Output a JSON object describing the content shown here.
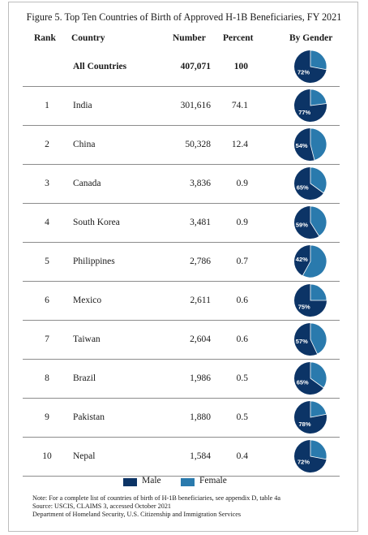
{
  "title": "Figure 5. Top Ten Countries of Birth of Approved H-1B Beneficiaries, FY 2021",
  "headers": {
    "rank": "Rank",
    "country": "Country",
    "number": "Number",
    "percent": "Percent",
    "gender": "By Gender"
  },
  "colors": {
    "male": "#0c3466",
    "female": "#2a7aad",
    "pie_label": "#ffffff"
  },
  "legend": {
    "male": "Male",
    "female": "Female"
  },
  "notes": [
    "Note: For a complete list of countries of birth of H-1B beneficiaries, see appendix D, table 4a",
    "Source: USCIS, CLAIMS 3, accessed October 2021",
    "Department of Homeland Security, U.S. Citizenship and Immigration Services"
  ],
  "chart_data": {
    "type": "table",
    "columns": [
      "Rank",
      "Country",
      "Number",
      "Percent",
      "By Gender"
    ],
    "rows": [
      {
        "rank": "",
        "country": "All Countries",
        "number": "407,071",
        "percent": "100",
        "male_pct": 72,
        "male_label": "72%"
      },
      {
        "rank": "1",
        "country": "India",
        "number": "301,616",
        "percent": "74.1",
        "male_pct": 77,
        "male_label": "77%"
      },
      {
        "rank": "2",
        "country": "China",
        "number": "50,328",
        "percent": "12.4",
        "male_pct": 54,
        "male_label": "54%"
      },
      {
        "rank": "3",
        "country": "Canada",
        "number": "3,836",
        "percent": "0.9",
        "male_pct": 65,
        "male_label": "65%"
      },
      {
        "rank": "4",
        "country": "South Korea",
        "number": "3,481",
        "percent": "0.9",
        "male_pct": 59,
        "male_label": "59%"
      },
      {
        "rank": "5",
        "country": "Philippines",
        "number": "2,786",
        "percent": "0.7",
        "male_pct": 42,
        "male_label": "42%"
      },
      {
        "rank": "6",
        "country": "Mexico",
        "number": "2,611",
        "percent": "0.6",
        "male_pct": 75,
        "male_label": "75%"
      },
      {
        "rank": "7",
        "country": "Taiwan",
        "number": "2,604",
        "percent": "0.6",
        "male_pct": 57,
        "male_label": "57%"
      },
      {
        "rank": "8",
        "country": "Brazil",
        "number": "1,986",
        "percent": "0.5",
        "male_pct": 65,
        "male_label": "65%"
      },
      {
        "rank": "9",
        "country": "Pakistan",
        "number": "1,880",
        "percent": "0.5",
        "male_pct": 78,
        "male_label": "78%"
      },
      {
        "rank": "10",
        "country": "Nepal",
        "number": "1,584",
        "percent": "0.4",
        "male_pct": 72,
        "male_label": "72%"
      }
    ],
    "series": [
      {
        "name": "Male"
      },
      {
        "name": "Female"
      }
    ]
  }
}
